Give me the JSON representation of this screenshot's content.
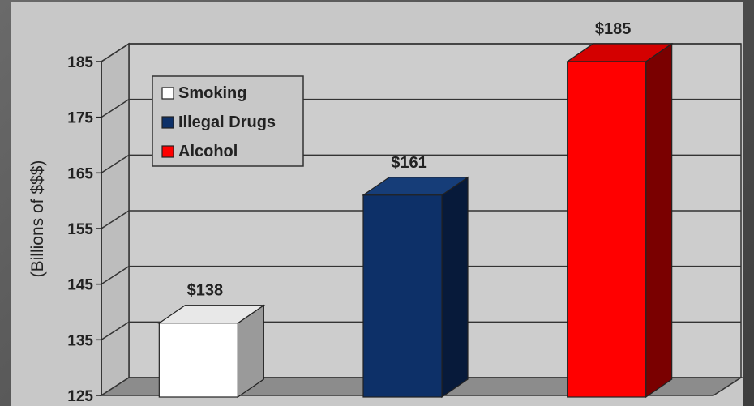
{
  "chart_data": {
    "type": "bar",
    "title": "",
    "xlabel": "",
    "ylabel": "(Billions of $$$)",
    "ylim": [
      125,
      185
    ],
    "yticks": [
      125,
      135,
      145,
      155,
      165,
      175,
      185
    ],
    "categories": [
      "Smoking",
      "Illegal Drugs",
      "Alcohol"
    ],
    "values": [
      138,
      161,
      185
    ],
    "data_labels": [
      "$138",
      "$161",
      "$185"
    ],
    "colors": [
      "#ffffff",
      "#0d3068",
      "#ff0000"
    ],
    "side_colors": [
      "#9a9a9a",
      "#071a3a",
      "#7a0000"
    ],
    "top_colors": [
      "#e8e8e8",
      "#163d78",
      "#d40000"
    ],
    "legend": {
      "placement": "top-left",
      "entries": [
        "Smoking",
        "Illegal Drugs",
        "Alcohol"
      ]
    },
    "grid": true,
    "style": "3d"
  }
}
